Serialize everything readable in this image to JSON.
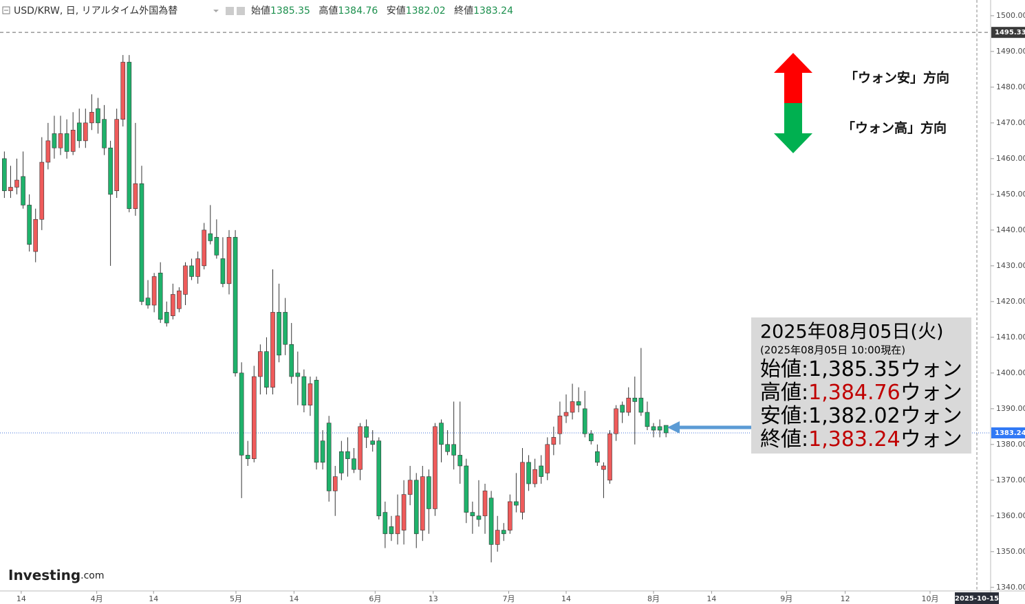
{
  "header": {
    "symbol": "USD/KRW, 日, リアルタイム外国為替",
    "ohlc": [
      {
        "label": "始値",
        "value": "1385.35"
      },
      {
        "label": "高値",
        "value": "1384.76"
      },
      {
        "label": "安値",
        "value": "1382.02"
      },
      {
        "label": "終値",
        "value": "1383.24"
      }
    ]
  },
  "chart_data": {
    "type": "candlestick",
    "up_color": "#ef5b5b",
    "down_color": "#1fb26b",
    "open": [
      1460,
      1451,
      1452,
      1455,
      1447,
      1434,
      1443,
      1459,
      1467,
      1463,
      1467,
      1462,
      1470,
      1465,
      1470,
      1474,
      1471,
      1463,
      1451,
      1471,
      1487,
      1446,
      1453,
      1421,
      1419,
      1428,
      1417,
      1416,
      1418,
      1422,
      1430,
      1427,
      1430,
      1439,
      1438,
      1432,
      1425,
      1438,
      1400,
      1377,
      1376,
      1399,
      1406,
      1396,
      1417,
      1417,
      1408,
      1400,
      1399,
      1391,
      1398,
      1381,
      1386,
      1367,
      1378,
      1378,
      1376,
      1373,
      1385,
      1381,
      1381,
      1361,
      1357,
      1355,
      1356,
      1366,
      1370,
      1356,
      1371,
      1362,
      1386,
      1380,
      1380,
      1377,
      1374,
      1361,
      1360,
      1360,
      1365,
      1352,
      1356,
      1356,
      1364,
      1361,
      1375,
      1369,
      1374,
      1372,
      1380,
      1383,
      1388,
      1389,
      1392,
      1390,
      1383,
      1378,
      1373,
      1370,
      1383,
      1391,
      1389,
      1393,
      1393,
      1389,
      1385,
      1385,
      1385.35
    ],
    "high": [
      1462,
      1458,
      1460,
      1462,
      1450,
      1446,
      1466,
      1470,
      1472,
      1472,
      1471,
      1473,
      1474,
      1474,
      1478,
      1477,
      1475,
      1465,
      1474,
      1489,
      1489,
      1470,
      1458,
      1426,
      1428,
      1431,
      1420,
      1425,
      1424,
      1431,
      1432,
      1434,
      1442,
      1447,
      1443,
      1438,
      1440,
      1440,
      1403,
      1381,
      1402,
      1408,
      1410,
      1429,
      1425,
      1421,
      1414,
      1406,
      1401,
      1399,
      1399,
      1384,
      1388,
      1374,
      1381,
      1382,
      1379,
      1386,
      1387,
      1384,
      1382,
      1364,
      1360,
      1366,
      1370,
      1374,
      1372,
      1374,
      1373,
      1386,
      1387,
      1384,
      1392,
      1392,
      1376,
      1364,
      1370,
      1369,
      1367,
      1360,
      1358,
      1366,
      1372,
      1379,
      1377,
      1376,
      1377,
      1382,
      1385,
      1392,
      1394,
      1397,
      1396,
      1395,
      1384,
      1380,
      1375,
      1384,
      1391,
      1392,
      1396,
      1399,
      1407,
      1392,
      1386,
      1387,
      1384.76
    ],
    "low": [
      1449,
      1449,
      1450,
      1446,
      1434,
      1431,
      1440,
      1457,
      1460,
      1461,
      1460,
      1461,
      1463,
      1463,
      1468,
      1467,
      1461,
      1430,
      1449,
      1469,
      1445,
      1444,
      1419,
      1418,
      1417,
      1414,
      1413,
      1415,
      1417,
      1419,
      1426,
      1425,
      1429,
      1436,
      1432,
      1424,
      1422,
      1399,
      1365,
      1374,
      1375,
      1394,
      1394,
      1394,
      1403,
      1405,
      1397,
      1391,
      1389,
      1388,
      1373,
      1373,
      1364,
      1360,
      1370,
      1371,
      1372,
      1370,
      1379,
      1378,
      1359,
      1351,
      1353,
      1352,
      1352,
      1363,
      1351,
      1353,
      1355,
      1360,
      1375,
      1377,
      1373,
      1369,
      1358,
      1355,
      1357,
      1355,
      1347,
      1350,
      1353,
      1355,
      1361,
      1359,
      1367,
      1368,
      1369,
      1370,
      1377,
      1380,
      1386,
      1387,
      1389,
      1382,
      1380,
      1374,
      1365,
      1369,
      1381,
      1386,
      1388,
      1380,
      1388,
      1384,
      1382,
      1382,
      1382.02
    ],
    "close": [
      1451,
      1452,
      1454,
      1447,
      1436,
      1443,
      1459,
      1465,
      1463,
      1467,
      1462,
      1468,
      1465,
      1470,
      1473,
      1470,
      1463,
      1450,
      1471,
      1487,
      1446,
      1453,
      1420,
      1419,
      1427,
      1415,
      1414,
      1422,
      1423,
      1430,
      1427,
      1432,
      1440,
      1437,
      1433,
      1425,
      1438,
      1400,
      1377,
      1376,
      1399,
      1406,
      1396,
      1417,
      1405,
      1408,
      1399,
      1399,
      1391,
      1397,
      1375,
      1375,
      1367,
      1371,
      1372,
      1376,
      1373,
      1385,
      1382,
      1380,
      1360,
      1355,
      1355,
      1360,
      1366,
      1370,
      1355,
      1371,
      1362,
      1385,
      1380,
      1378,
      1377,
      1374,
      1361,
      1360,
      1359,
      1367,
      1352,
      1356,
      1355,
      1364,
      1363,
      1375,
      1369,
      1373,
      1371,
      1380,
      1382,
      1388,
      1389,
      1392,
      1391,
      1383,
      1381,
      1375,
      1374,
      1383,
      1390,
      1389,
      1393,
      1392,
      1389,
      1385,
      1384,
      1384,
      1383.24
    ],
    "xlim": [
      -0.7,
      158
    ],
    "xticks": [
      {
        "value": 2.7,
        "label": "14"
      },
      {
        "value": 14.8,
        "label": "4月"
      },
      {
        "value": 23.9,
        "label": "14"
      },
      {
        "value": 37.1,
        "label": "5月"
      },
      {
        "value": 46.4,
        "label": "14"
      },
      {
        "value": 59.4,
        "label": "6月"
      },
      {
        "value": 68.7,
        "label": "13"
      },
      {
        "value": 80.8,
        "label": "7月"
      },
      {
        "value": 90,
        "label": "14"
      },
      {
        "value": 104,
        "label": "8月"
      },
      {
        "value": 113.3,
        "label": "14"
      },
      {
        "value": 125.3,
        "label": "9月"
      },
      {
        "value": 134.7,
        "label": "12"
      },
      {
        "value": 148.3,
        "label": "10月"
      }
    ],
    "cursor_x": {
      "value": 155.8,
      "label": "2025-10-15"
    },
    "ylim": [
      1339,
      1504.4
    ],
    "yticks": [
      {
        "value": 1340,
        "label": "1340.00"
      },
      {
        "value": 1350,
        "label": "1350.00"
      },
      {
        "value": 1360,
        "label": "1360.00"
      },
      {
        "value": 1370,
        "label": "1370.00"
      },
      {
        "value": 1380,
        "label": "1380.00"
      },
      {
        "value": 1390,
        "label": "1390.00"
      },
      {
        "value": 1400,
        "label": "1400.00"
      },
      {
        "value": 1410,
        "label": "1410.00"
      },
      {
        "value": 1420,
        "label": "1420.00"
      },
      {
        "value": 1430,
        "label": "1430.00"
      },
      {
        "value": 1440,
        "label": "1440.00"
      },
      {
        "value": 1450,
        "label": "1450.00"
      },
      {
        "value": 1460,
        "label": "1460.00"
      },
      {
        "value": 1470,
        "label": "1470.00"
      },
      {
        "value": 1480,
        "label": "1480.00"
      },
      {
        "value": 1490,
        "label": "1490.00"
      },
      {
        "value": 1500,
        "label": "1500.00"
      }
    ],
    "high_line": 1495.33,
    "last_price": 1383.24,
    "annotations": {
      "up": "「ウォン安」方向",
      "down": "「ウォン高」方向"
    },
    "info_box": {
      "date": "2025年08月05日(火)",
      "asof": "(2025年08月05日 10:00現在)",
      "rows": [
        {
          "label": "始値:",
          "value": "1,385.35",
          "unit": "ウォン",
          "color": "#000000"
        },
        {
          "label": "高値:",
          "value": "1,384.76",
          "unit": "ウォン",
          "color": "#c00000"
        },
        {
          "label": "安値:",
          "value": "1,382.02",
          "unit": "ウォン",
          "color": "#000000"
        },
        {
          "label": "終値:",
          "value": "1,383.24",
          "unit": "ウォン",
          "color": "#c00000"
        }
      ]
    }
  },
  "logo": {
    "name": "Investing",
    "suffix": ".com"
  }
}
